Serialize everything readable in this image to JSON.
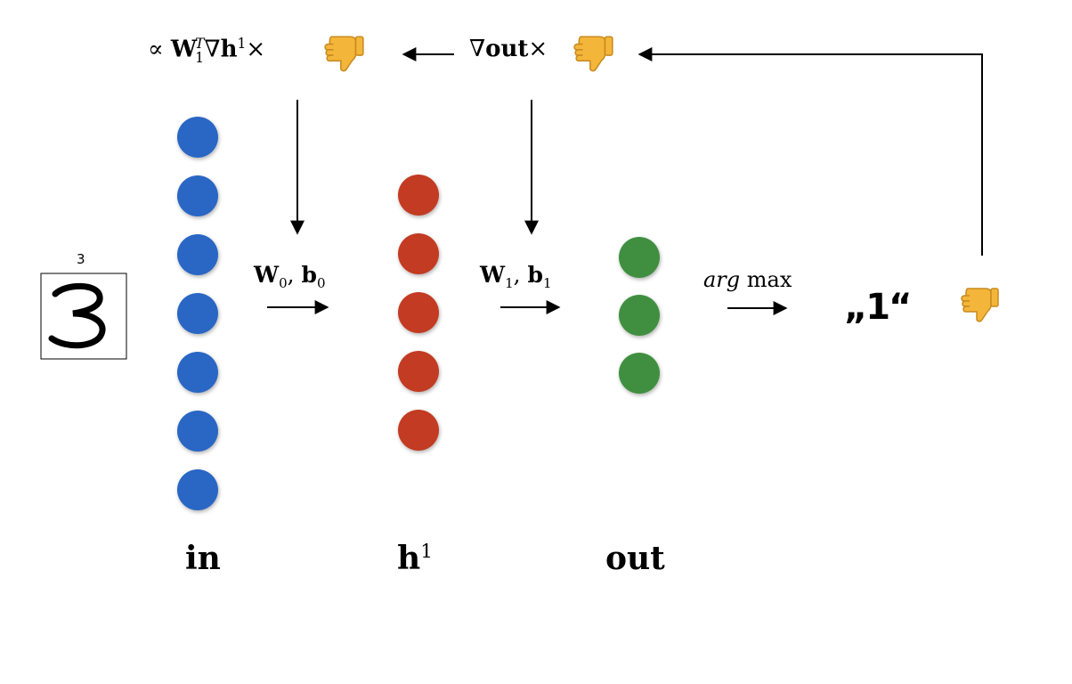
{
  "digit_image": {
    "caption": "3",
    "digit": "3"
  },
  "layers": {
    "in": {
      "label": "in",
      "nodes": 7,
      "color": "#2a66c4"
    },
    "h1": {
      "label": "h",
      "sup": "1",
      "nodes": 5,
      "color": "#c23b22"
    },
    "out": {
      "label": "out",
      "nodes": 3,
      "color": "#3f8f41"
    }
  },
  "forward": {
    "w0_label": "W",
    "w0_sub": "0",
    "b0_label": "b",
    "b0_sub": "0",
    "w1_label": "W",
    "w1_sub": "1",
    "b1_label": "b",
    "b1_sub": "1",
    "argmax_italic": "arg",
    "argmax_text": "max",
    "prediction": "„1“"
  },
  "backward": {
    "grad_h_prefix": "∝",
    "grad_h_W": "W",
    "grad_h_W_sub": "1",
    "grad_h_W_sup": "T",
    "grad_h_nabla": "∇",
    "grad_h_h": "h",
    "grad_h_h_sup": "1",
    "grad_h_times": "×",
    "grad_out_nabla": "∇",
    "grad_out_label": "out",
    "grad_out_times": "×"
  },
  "icons": {
    "feedback": "thumbs-down",
    "feedback_glyph": "👎"
  },
  "colors": {
    "input": "#2a66c4",
    "hidden": "#c23b22",
    "output": "#3f8f41",
    "thumb": "#f4b63a"
  }
}
